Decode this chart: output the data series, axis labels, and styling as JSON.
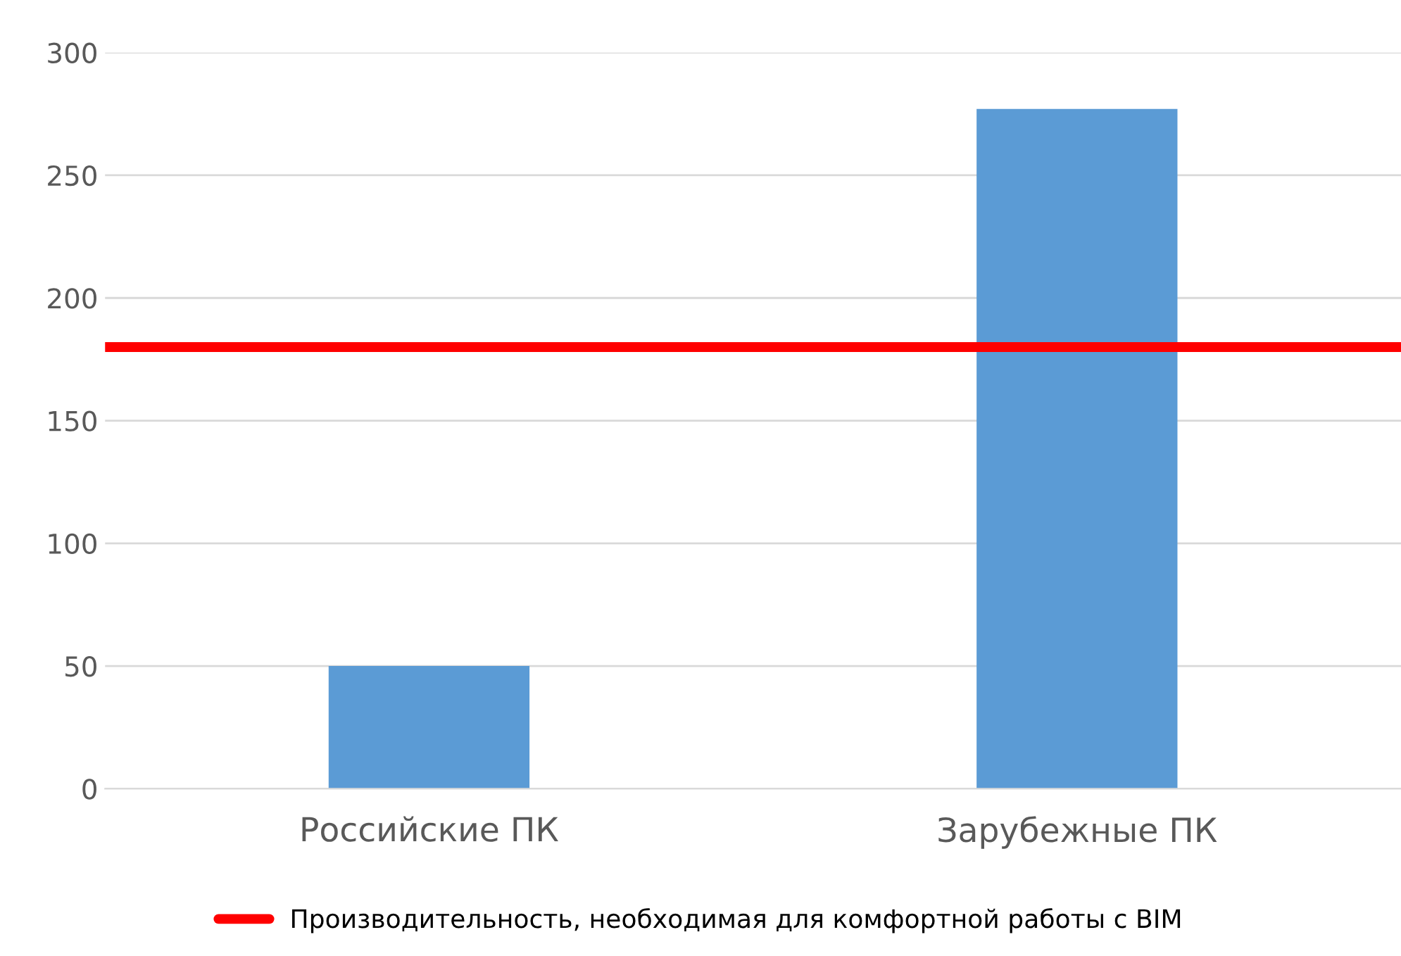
{
  "chart_data": {
    "type": "bar",
    "categories": [
      "Российские ПК",
      "Зарубежные ПК"
    ],
    "values": [
      50,
      277
    ],
    "color": "#5b9bd5",
    "ylim": [
      0,
      300
    ],
    "yticks": [
      0,
      50,
      100,
      150,
      200,
      250,
      300
    ],
    "grid": "y",
    "ref_lines": [
      {
        "axis": "y",
        "value": 180,
        "label": "Производительность, необходимая для комфортной работы с BIM",
        "color": "#ff0000",
        "line_style": "solid"
      }
    ],
    "legend": "bottom"
  }
}
